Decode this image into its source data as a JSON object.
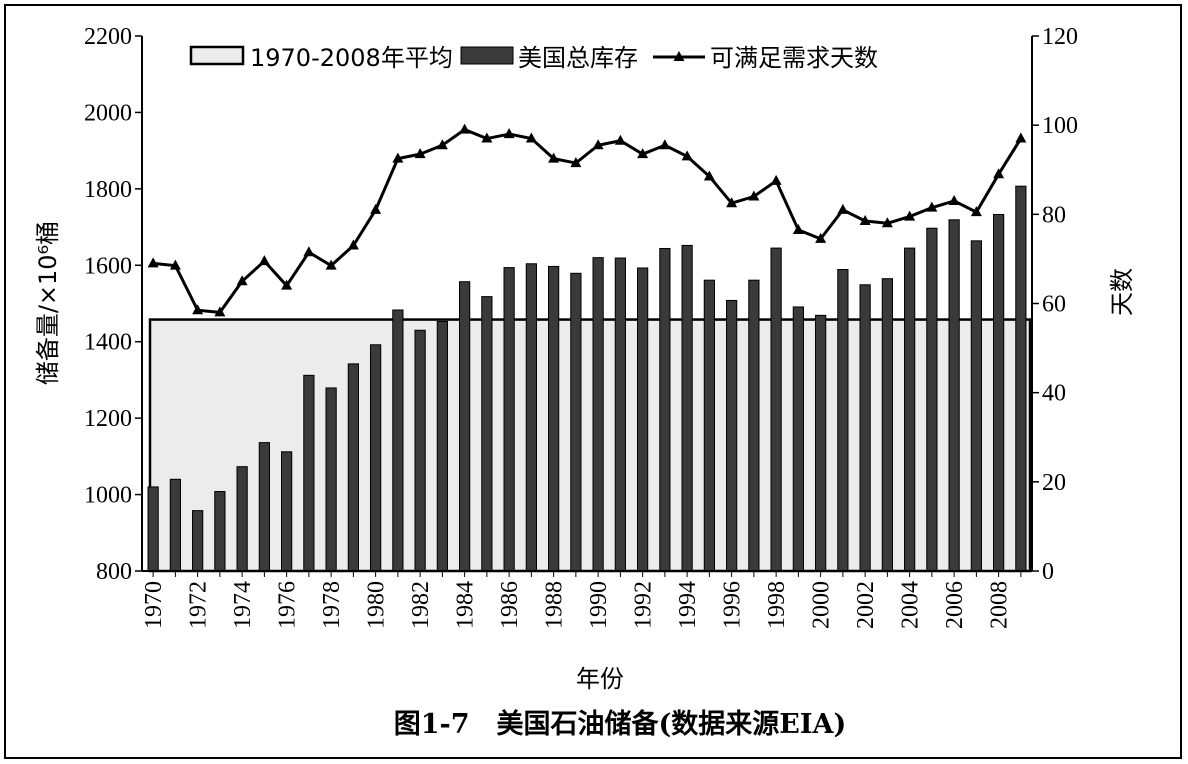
{
  "chart_data": {
    "type": "bar",
    "caption": "图1-7　美国石油储备(数据来源EIA)",
    "xlabel": "年份",
    "ylabel_left": "储备量/×10⁶桶",
    "ylabel_right": "天数",
    "ylim_left": [
      800,
      2200
    ],
    "ylim_right": [
      0,
      120
    ],
    "yticks_left": [
      "800",
      "1000",
      "1200",
      "1400",
      "1600",
      "1800",
      "2000",
      "2200"
    ],
    "yticks_right": [
      "0",
      "20",
      "40",
      "60",
      "80",
      "100",
      "120"
    ],
    "legend": [
      "1970-2008年平均",
      "美国总库存",
      "可满足需求天数"
    ],
    "legend_position": "top",
    "x_tick_labels": [
      "1970",
      "1972",
      "1974",
      "1976",
      "1978",
      "1980",
      "1982",
      "1984",
      "1986",
      "1988",
      "1990",
      "1992",
      "1994",
      "1996",
      "1998",
      "2000",
      "2002",
      "2004",
      "2006",
      "2008"
    ],
    "years": [
      1970,
      1971,
      1972,
      1973,
      1974,
      1975,
      1976,
      1977,
      1978,
      1979,
      1980,
      1981,
      1982,
      1983,
      1984,
      1985,
      1986,
      1987,
      1988,
      1989,
      1990,
      1991,
      1992,
      1993,
      1994,
      1995,
      1996,
      1997,
      1998,
      1999,
      2000,
      2001,
      2002,
      2003,
      2004,
      2005,
      2006,
      2007,
      2008,
      2009
    ],
    "series": [
      {
        "name": "美国总库存",
        "axis": "left",
        "type": "bar",
        "values": [
          1020,
          1040,
          958,
          1008,
          1073,
          1136,
          1112,
          1312,
          1279,
          1342,
          1392,
          1483,
          1430,
          1453,
          1557,
          1518,
          1594,
          1604,
          1597,
          1579,
          1620,
          1619,
          1593,
          1644,
          1652,
          1561,
          1508,
          1561,
          1645,
          1491,
          1469,
          1589,
          1549,
          1565,
          1645,
          1697,
          1719,
          1664,
          1733,
          1807
        ]
      },
      {
        "name": "1970-2008年平均",
        "axis": "left",
        "type": "area",
        "value": 1458
      },
      {
        "name": "可满足需求天数",
        "axis": "right",
        "type": "line",
        "values": [
          69,
          68.5,
          58.5,
          58,
          65,
          69.5,
          64,
          71.5,
          68.5,
          73,
          81,
          92.5,
          93.5,
          95.5,
          99,
          97,
          98,
          97,
          92.5,
          91.5,
          95.5,
          96.5,
          93.5,
          95.5,
          93,
          88.5,
          82.5,
          84,
          87.5,
          76.5,
          74.5,
          81,
          78.5,
          78,
          79.5,
          81.5,
          83,
          80.5,
          89,
          97
        ]
      }
    ],
    "colors": {
      "bar": "#3a3a3a",
      "area": "#ececec",
      "line": "#000000"
    }
  }
}
